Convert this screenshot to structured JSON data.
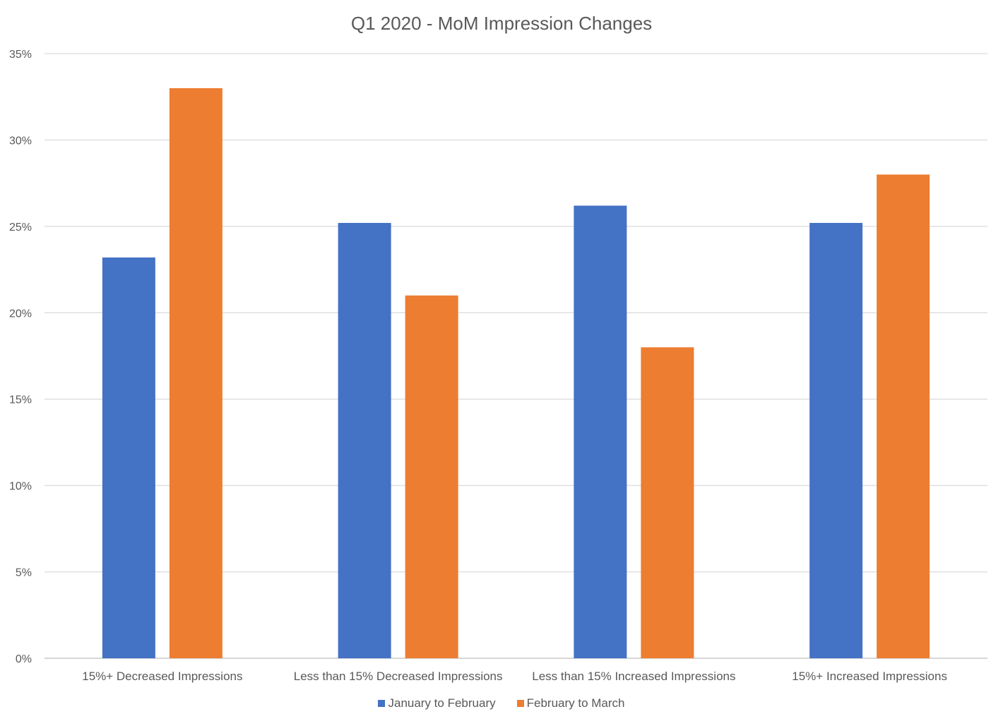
{
  "chart_data": {
    "type": "bar",
    "title": "Q1 2020 - MoM Impression Changes",
    "xlabel": "",
    "ylabel": "",
    "categories": [
      "15%+ Decreased Impressions",
      "Less than 15% Decreased Impressions",
      "Less than 15% Increased Impressions",
      "15%+ Increased Impressions"
    ],
    "series": [
      {
        "name": "January to February",
        "color": "#4472C4",
        "values": [
          23.2,
          25.2,
          26.2,
          25.2
        ]
      },
      {
        "name": "February to March",
        "color": "#ED7D31",
        "values": [
          33,
          21,
          18,
          28
        ]
      }
    ],
    "ylim": [
      0,
      35
    ],
    "yticks": [
      "0%",
      "5%",
      "10%",
      "15%",
      "20%",
      "25%",
      "30%",
      "35%"
    ],
    "ytick_step": 5,
    "grid": true,
    "legend_position": "bottom"
  }
}
